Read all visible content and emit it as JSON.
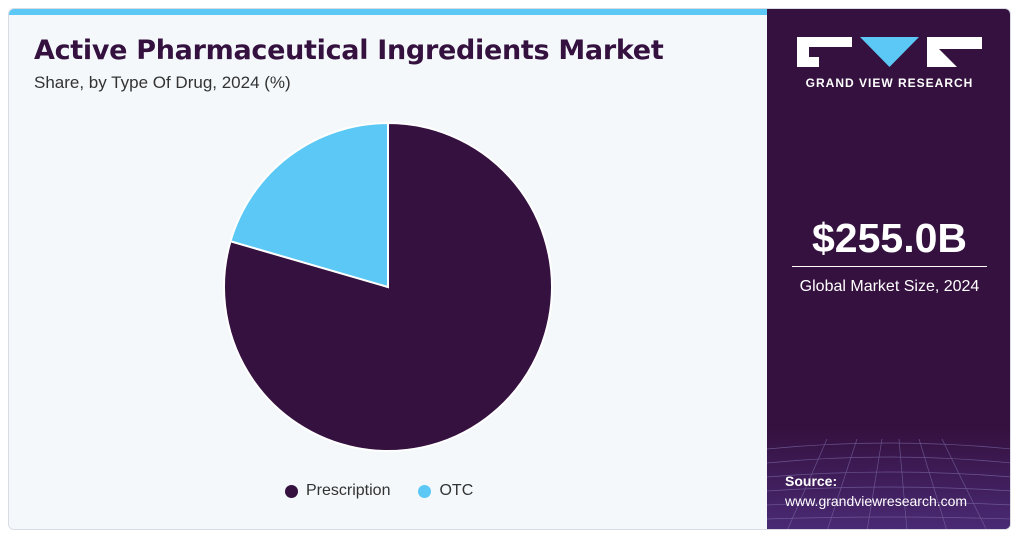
{
  "header": {
    "title": "Active Pharmaceutical Ingredients Market",
    "subtitle": "Share, by Type Of Drug, 2024 (%)"
  },
  "chart_data": {
    "type": "pie",
    "title": "Active Pharmaceutical Ingredients Market",
    "subtitle": "Share, by Type Of Drug, 2024 (%)",
    "categories": [
      "Prescription",
      "OTC"
    ],
    "values": [
      79.5,
      20.5
    ],
    "colors": [
      "#35113f",
      "#5bc8f5"
    ],
    "start_angle": "12 o'clock",
    "direction": "clockwise",
    "legend_position": "bottom-center"
  },
  "sidebar": {
    "brand": "GRAND VIEW RESEARCH",
    "market_value": "$255.0B",
    "market_label": "Global Market Size, 2024",
    "source_title": "Source:",
    "source_url": "www.grandviewresearch.com"
  },
  "colors": {
    "sidebar_background": "#35113f",
    "accent": "#5bc8f5",
    "title_text": "#35113f"
  }
}
